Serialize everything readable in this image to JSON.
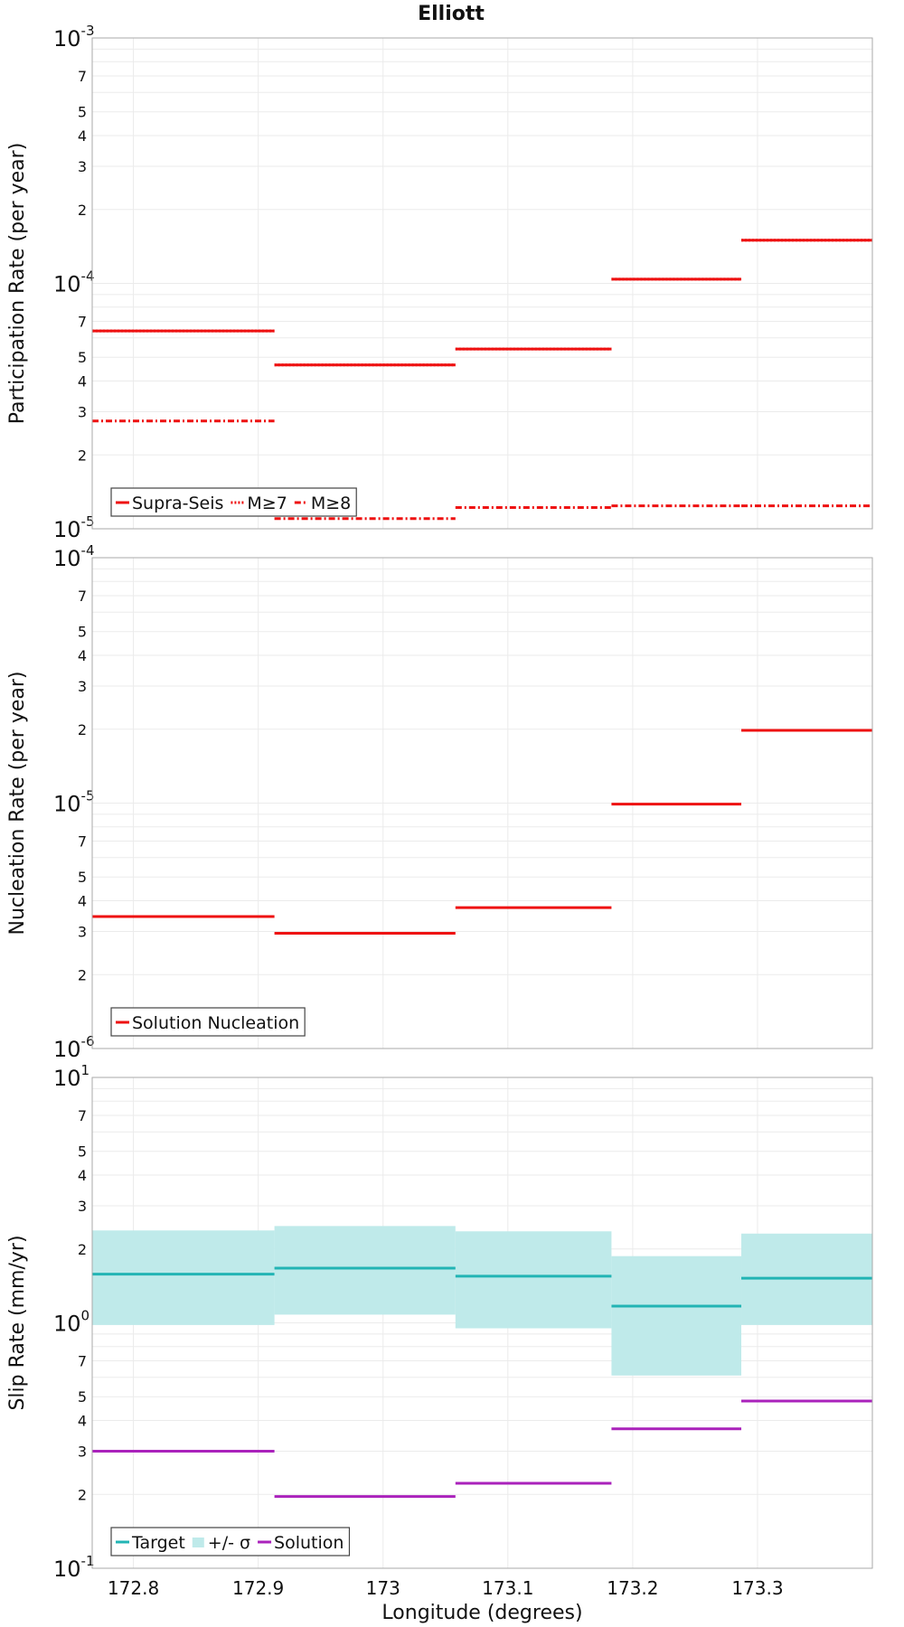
{
  "title": "Elliott",
  "chart_data": [
    {
      "type": "line",
      "panel": "participation",
      "ylabel": "Participation Rate (per year)",
      "yscale": "log",
      "ylim": [
        1e-05,
        0.001
      ],
      "y_ticks": {
        "major_base": "10",
        "major_exponents": [
          "-5",
          "-4",
          "-3"
        ],
        "minor": [
          "2",
          "3",
          "4",
          "5",
          "7"
        ]
      },
      "x_edges": [
        172.767,
        172.913,
        173.058,
        173.183,
        173.287,
        173.392
      ],
      "grid": true,
      "legend_placement": "bottom-left",
      "series": [
        {
          "name": "Supra-Seis",
          "style": "solid",
          "color": "#ee1111",
          "values": [
            6.4e-05,
            4.65e-05,
            5.4e-05,
            0.000104,
            0.00015
          ]
        },
        {
          "name": "M≥7",
          "style": "dotted",
          "color": "#ee1111",
          "values": [
            6.4e-05,
            4.65e-05,
            5.4e-05,
            0.000104,
            0.00015
          ]
        },
        {
          "name": "M≥8",
          "style": "dashdot",
          "color": "#ee1111",
          "values": [
            2.75e-05,
            1.1e-05,
            1.22e-05,
            1.24e-05,
            1.24e-05
          ]
        }
      ]
    },
    {
      "type": "line",
      "panel": "nucleation",
      "ylabel": "Nucleation Rate (per year)",
      "yscale": "log",
      "ylim": [
        1e-06,
        0.0001
      ],
      "y_ticks": {
        "major_base": "10",
        "major_exponents": [
          "-6",
          "-5",
          "-4"
        ],
        "minor": [
          "2",
          "3",
          "4",
          "5",
          "7"
        ]
      },
      "x_edges": [
        172.767,
        172.913,
        173.058,
        173.183,
        173.287,
        173.392
      ],
      "grid": true,
      "legend_placement": "bottom-left",
      "series": [
        {
          "name": "Solution Nucleation",
          "style": "solid",
          "color": "#ee1111",
          "values": [
            3.45e-06,
            2.95e-06,
            3.75e-06,
            9.9e-06,
            1.98e-05
          ]
        }
      ]
    },
    {
      "type": "line",
      "panel": "slip",
      "ylabel": "Slip Rate (mm/yr)",
      "xlabel": "Longitude (degrees)",
      "yscale": "log",
      "ylim": [
        0.1,
        10
      ],
      "y_ticks": {
        "major_base": "10",
        "major_exponents": [
          "-1",
          "0",
          "1"
        ],
        "minor": [
          "2",
          "3",
          "4",
          "5",
          "7"
        ]
      },
      "x_ticks": [
        "172.8",
        "172.9",
        "173",
        "173.1",
        "173.2",
        "173.3"
      ],
      "x_tick_values": [
        172.8,
        172.9,
        173.0,
        173.1,
        173.2,
        173.3
      ],
      "x_edges": [
        172.767,
        172.913,
        173.058,
        173.183,
        173.287,
        173.392
      ],
      "grid": true,
      "legend_placement": "bottom-left",
      "series": [
        {
          "name": "Target",
          "style": "solid",
          "color": "#22b4b4",
          "values": [
            1.58,
            1.67,
            1.55,
            1.17,
            1.52
          ]
        },
        {
          "name": "+/- σ",
          "style": "band",
          "color": "#bfeaea",
          "low": [
            0.98,
            1.08,
            0.95,
            0.61,
            0.98
          ],
          "high": [
            2.38,
            2.48,
            2.36,
            1.87,
            2.31
          ]
        },
        {
          "name": "Solution",
          "style": "solid",
          "color": "#aa22bb",
          "values": [
            0.3,
            0.196,
            0.222,
            0.37,
            0.48
          ]
        }
      ]
    }
  ]
}
